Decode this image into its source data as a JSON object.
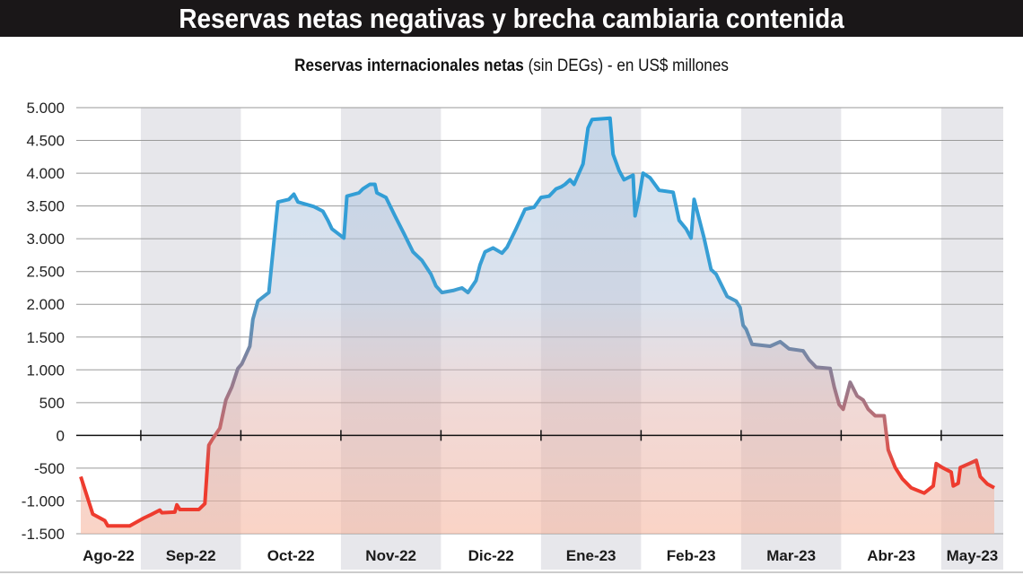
{
  "header": {
    "title": "Reservas netas negativas y brecha cambiaria contenida"
  },
  "chart_data": {
    "type": "area",
    "title": "Reservas internacionales netas",
    "subtitle": "(sin DEGs) - en US$ millones",
    "xlabel": "",
    "ylabel": "",
    "x_units": "months since 1 Aug 2022",
    "xlim": [
      0.355,
      9.62
    ],
    "ylim": [
      -1500,
      5000
    ],
    "grid": true,
    "yticks": [
      5000,
      4500,
      4000,
      3500,
      3000,
      2500,
      2000,
      1500,
      1000,
      500,
      0,
      -500,
      -1000,
      -1500
    ],
    "ytick_labels": [
      "5.000",
      "4.500",
      "4.000",
      "3.500",
      "3.000",
      "2.500",
      "2.000",
      "1.500",
      "1.000",
      "500",
      "0",
      "-500",
      "-1.000",
      "-1.500"
    ],
    "months": [
      {
        "label": "Ago-22",
        "start": 0,
        "shaded": false
      },
      {
        "label": "Sep-22",
        "start": 1,
        "shaded": true
      },
      {
        "label": "Oct-22",
        "start": 2,
        "shaded": false
      },
      {
        "label": "Nov-22",
        "start": 3,
        "shaded": true
      },
      {
        "label": "Dic-22",
        "start": 4,
        "shaded": false
      },
      {
        "label": "Ene-23",
        "start": 5,
        "shaded": true
      },
      {
        "label": "Feb-23",
        "start": 6,
        "shaded": false
      },
      {
        "label": "Mar-23",
        "start": 7,
        "shaded": true
      },
      {
        "label": "Abr-23",
        "start": 8,
        "shaded": false
      },
      {
        "label": "May-23",
        "start": 9,
        "shaded": true
      }
    ],
    "colors": {
      "positive": "#2a9dd8",
      "middle": "#8a7f96",
      "negative": "#ee3b2e",
      "band": "#e7e7eb",
      "grid": "#9a9a9a"
    },
    "series": [
      {
        "name": "Reservas internacionales netas",
        "x": [
          0.4,
          0.52,
          0.64,
          0.67,
          0.89,
          1.03,
          1.1,
          1.19,
          1.21,
          1.34,
          1.36,
          1.39,
          1.58,
          1.64,
          1.68,
          1.72,
          1.79,
          1.83,
          1.85,
          1.91,
          1.94,
          1.97,
          2.01,
          2.09,
          2.12,
          2.17,
          2.28,
          2.37,
          2.48,
          2.53,
          2.57,
          2.73,
          2.82,
          2.87,
          2.91,
          3.03,
          3.06,
          3.18,
          3.22,
          3.29,
          3.34,
          3.36,
          3.45,
          3.54,
          3.63,
          3.72,
          3.81,
          3.9,
          3.95,
          4.01,
          4.12,
          4.21,
          4.27,
          4.35,
          4.39,
          4.44,
          4.52,
          4.61,
          4.66,
          4.75,
          4.84,
          4.93,
          5.0,
          5.08,
          5.15,
          5.2,
          5.24,
          5.29,
          5.33,
          5.42,
          5.47,
          5.51,
          5.69,
          5.72,
          5.78,
          5.83,
          5.92,
          5.94,
          5.98,
          6.02,
          6.09,
          6.18,
          6.32,
          6.38,
          6.45,
          6.5,
          6.53,
          6.63,
          6.7,
          6.75,
          6.86,
          6.95,
          6.99,
          7.02,
          7.05,
          7.11,
          7.29,
          7.39,
          7.48,
          7.62,
          7.68,
          7.75,
          7.89,
          7.93,
          7.98,
          8.02,
          8.09,
          8.16,
          8.22,
          8.27,
          8.34,
          8.43,
          8.47,
          8.54,
          8.61,
          8.7,
          8.83,
          8.92,
          8.95,
          9.01,
          9.1,
          9.12,
          9.17,
          9.19,
          9.28,
          9.35,
          9.39,
          9.46,
          9.53
        ],
        "y": [
          -630,
          -1200,
          -1300,
          -1380,
          -1380,
          -1260,
          -1210,
          -1140,
          -1180,
          -1170,
          -1060,
          -1130,
          -1130,
          -1040,
          -150,
          -50,
          110,
          400,
          540,
          740,
          880,
          1020,
          1090,
          1360,
          1770,
          2050,
          2180,
          3560,
          3600,
          3680,
          3560,
          3490,
          3420,
          3280,
          3150,
          3010,
          3650,
          3700,
          3760,
          3830,
          3830,
          3700,
          3630,
          3350,
          3080,
          2800,
          2670,
          2460,
          2280,
          2180,
          2210,
          2250,
          2180,
          2360,
          2600,
          2800,
          2860,
          2780,
          2870,
          3150,
          3450,
          3480,
          3630,
          3650,
          3760,
          3790,
          3830,
          3900,
          3830,
          4140,
          4690,
          4820,
          4840,
          4290,
          4040,
          3900,
          3970,
          3350,
          3630,
          4000,
          3930,
          3740,
          3710,
          3280,
          3150,
          3010,
          3600,
          3010,
          2530,
          2460,
          2120,
          2050,
          1950,
          1680,
          1620,
          1390,
          1360,
          1430,
          1320,
          1290,
          1150,
          1040,
          1020,
          740,
          470,
          400,
          810,
          600,
          540,
          400,
          300,
          300,
          -220,
          -490,
          -660,
          -800,
          -880,
          -770,
          -430,
          -490,
          -560,
          -770,
          -730,
          -490,
          -430,
          -380,
          -630,
          -740,
          -800
        ]
      }
    ]
  }
}
